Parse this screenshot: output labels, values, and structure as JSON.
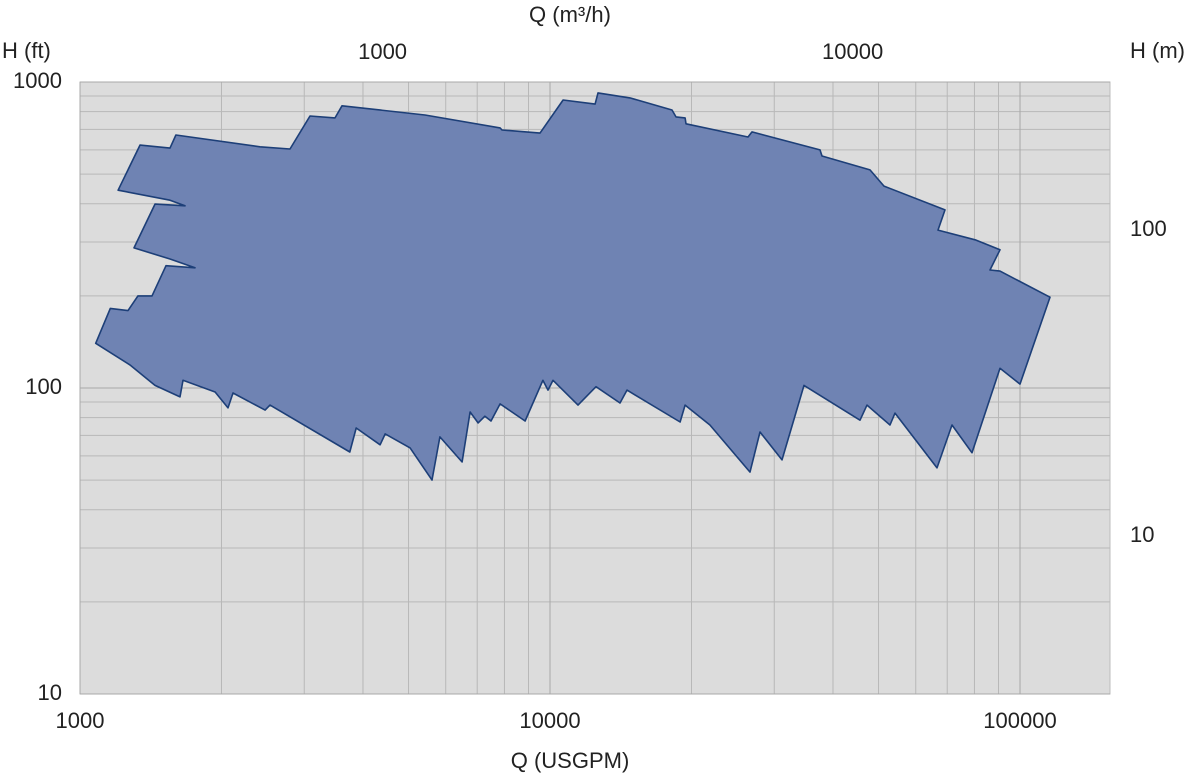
{
  "chart_data": {
    "type": "area",
    "x_label": "Q (USGPM)",
    "y_label": "H (ft)",
    "x2_label": "Q (m³/h)",
    "y2_label": "H (m)",
    "xscale": "log",
    "yscale": "log",
    "xlim": [
      1000,
      155400
    ],
    "xticks": [
      1000,
      10000,
      100000
    ],
    "ylim": [
      10,
      1000
    ],
    "yticks": [
      10,
      100,
      1000
    ],
    "x2lim": [
      227.1,
      35290
    ],
    "x2ticks": [
      1000,
      10000
    ],
    "y2lim": [
      3.048,
      304.8
    ],
    "y2ticks": [
      10,
      100
    ],
    "grid": true,
    "minor_grid": true,
    "series": [
      {
        "color": "#6f83b3",
        "edge_color": "#1d3f78",
        "x": [
          1080,
          1160,
          1265,
          1328,
          1423,
          1524,
          1757,
          1554,
          1303,
          1444,
          1673,
          1554,
          1205,
          1342,
          1554,
          1600,
          2415,
          2798,
          3086,
          3488,
          3610,
          5420,
          7830,
          7905,
          9520,
          10660,
          12470,
          12650,
          14800,
          18180,
          18540,
          19380,
          19470,
          26380,
          26900,
          37530,
          37900,
          47960,
          51360,
          69240,
          66910,
          80240,
          90660,
          86330,
          90660,
          115800,
          100000,
          90660,
          79050,
          71670,
          66590,
          54200,
          52890,
          47260,
          45660,
          34710,
          31160,
          27980,
          26640,
          21890,
          19380,
          18910,
          14580,
          14090,
          12530,
          11470,
          10150,
          9900,
          9660,
          8850,
          7830,
          7490,
          7270,
          7030,
          6760,
          6500,
          5830,
          5610,
          5040,
          4460,
          4350,
          3870,
          3750,
          2537,
          2476,
          2116,
          2065,
          1938,
          1656,
          1632,
          1444,
          1277
        ],
        "values": [
          140,
          182,
          179,
          200,
          200,
          251,
          247,
          264,
          287,
          399,
          394,
          411,
          443,
          622,
          608,
          671,
          614,
          604,
          774,
          763,
          836,
          780,
          708,
          697,
          681,
          873,
          847,
          921,
          887,
          810,
          769,
          763,
          730,
          661,
          687,
          600,
          573,
          516,
          457,
          382,
          328,
          305,
          283,
          243,
          241,
          198,
          103,
          116,
          61.4,
          75.7,
          54.8,
          82.8,
          75.7,
          87.9,
          78.5,
          102,
          58.2,
          71.8,
          53.1,
          75.7,
          87.9,
          77.4,
          98.4,
          89.3,
          101,
          87.9,
          106,
          98.4,
          106,
          78,
          88.7,
          78,
          80.9,
          76.9,
          83.5,
          57.3,
          69.2,
          50,
          63.7,
          70.8,
          65.2,
          74,
          61.8,
          87.9,
          84.7,
          96.3,
          86.1,
          97,
          106,
          93.5,
          102,
          119
        ]
      }
    ]
  }
}
